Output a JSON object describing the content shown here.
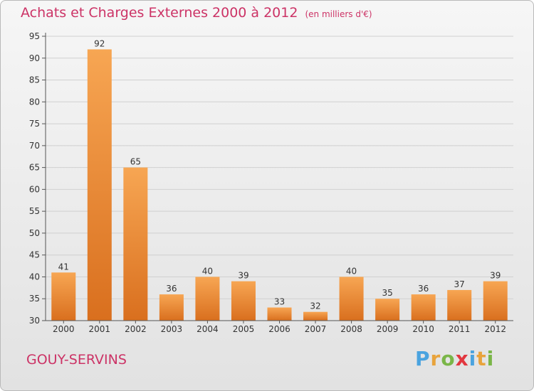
{
  "header": {
    "title": "Achats et Charges Externes 2000 à 2012",
    "unit_note": "(en milliers d'€)"
  },
  "footer": {
    "commune": "GOUY-SERVINS",
    "brand": {
      "letters": [
        "P",
        "r",
        "o",
        "x",
        "i",
        "t",
        "i"
      ],
      "colors": [
        "#4aa3df",
        "#e8a33c",
        "#7ab648",
        "#e2373f",
        "#4aa3df",
        "#e8a33c",
        "#7ab648"
      ]
    }
  },
  "colors": {
    "title": "#cc3366",
    "bar_light": "#f7a653",
    "bar_dark": "#d96f1e",
    "grid": "#d0d0d0",
    "axis": "#555555"
  },
  "chart_data": {
    "type": "bar",
    "categories": [
      "2000",
      "2001",
      "2002",
      "2003",
      "2004",
      "2005",
      "2006",
      "2007",
      "2008",
      "2009",
      "2010",
      "2011",
      "2012"
    ],
    "values": [
      41,
      92,
      65,
      36,
      40,
      39,
      33,
      32,
      40,
      35,
      36,
      37,
      39
    ],
    "ylim": [
      30,
      95
    ],
    "yticks": [
      30,
      35,
      40,
      45,
      50,
      55,
      60,
      65,
      70,
      75,
      80,
      85,
      90,
      95
    ],
    "grid": true,
    "legend": "none"
  }
}
